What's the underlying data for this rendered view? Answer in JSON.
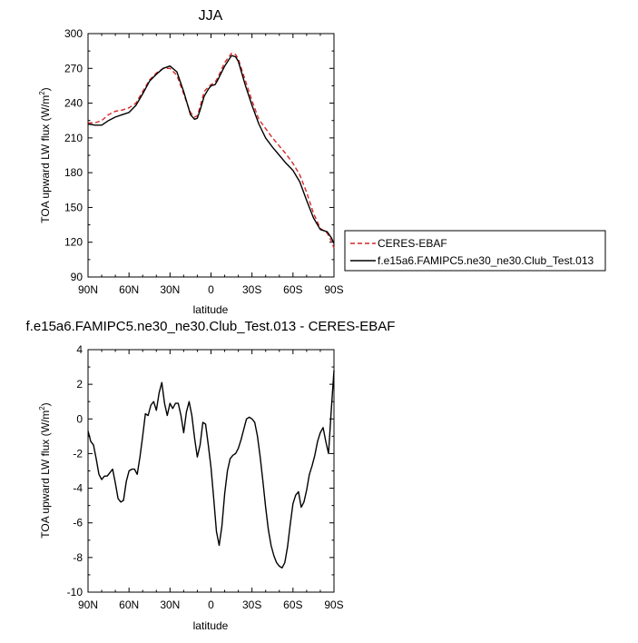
{
  "chart_data": [
    {
      "type": "line",
      "title": "JJA",
      "xlabel": "latitude",
      "ylabel": "TOA upward LW flux (W/m",
      "ylabel_sup": "2",
      "ylabel_end": ")",
      "xlim": [
        90,
        -90
      ],
      "ylim": [
        90,
        300
      ],
      "xticks": [
        90,
        60,
        30,
        0,
        -30,
        -60,
        -90
      ],
      "xtick_labels": [
        "90N",
        "60N",
        "30N",
        "0",
        "30S",
        "60S",
        "90S"
      ],
      "yticks": [
        90,
        120,
        150,
        180,
        210,
        240,
        270,
        300
      ],
      "ytick_labels": [
        "90",
        "120",
        "150",
        "180",
        "210",
        "240",
        "270",
        "300"
      ],
      "legend_position": "right",
      "series": [
        {
          "name": "CERES-EBAF",
          "color": "#d62728",
          "dash": "dashed",
          "x": [
            90,
            85,
            80,
            75,
            70,
            65,
            60,
            55,
            50,
            45,
            40,
            35,
            30,
            25,
            20,
            17,
            15,
            12,
            10,
            8,
            5,
            2,
            0,
            -3,
            -5,
            -10,
            -15,
            -18,
            -20,
            -25,
            -30,
            -35,
            -40,
            -45,
            -50,
            -55,
            -60,
            -65,
            -70,
            -75,
            -80,
            -85,
            -88,
            -90
          ],
          "y": [
            223,
            223,
            225,
            230,
            233,
            234,
            236,
            240,
            250,
            260,
            266,
            270,
            270,
            264,
            248,
            238,
            232,
            228,
            229,
            237,
            250,
            254,
            256,
            258,
            262,
            275,
            283,
            282,
            278,
            260,
            242,
            226,
            218,
            210,
            203,
            196,
            188,
            178,
            163,
            145,
            132,
            128,
            121,
            115
          ]
        },
        {
          "name": "f.e15a6.FAMIPC5.ne30_ne30.Club_Test.013",
          "color": "#000000",
          "dash": "solid",
          "x": [
            90,
            85,
            80,
            75,
            70,
            65,
            60,
            55,
            50,
            45,
            40,
            35,
            30,
            25,
            20,
            17,
            15,
            12,
            10,
            8,
            5,
            2,
            0,
            -3,
            -5,
            -10,
            -15,
            -18,
            -20,
            -25,
            -30,
            -35,
            -40,
            -45,
            -50,
            -55,
            -60,
            -65,
            -70,
            -75,
            -80,
            -85,
            -88,
            -90
          ],
          "y": [
            222,
            221,
            221,
            225,
            228,
            230,
            232,
            238,
            248,
            259,
            265,
            270,
            272,
            267,
            250,
            238,
            230,
            226,
            227,
            234,
            246,
            252,
            255,
            256,
            260,
            272,
            281,
            280,
            276,
            256,
            238,
            222,
            210,
            202,
            195,
            188,
            182,
            172,
            156,
            141,
            131,
            129,
            124,
            119
          ]
        }
      ]
    },
    {
      "type": "line",
      "title": "f.e15a6.FAMIPC5.ne30_ne30.Club_Test.013 - CERES-EBAF",
      "xlabel": "latitude",
      "ylabel": "TOA upward LW flux (W/m",
      "ylabel_sup": "2",
      "ylabel_end": ")",
      "xlim": [
        90,
        -90
      ],
      "ylim": [
        -10,
        4
      ],
      "xticks": [
        90,
        60,
        30,
        0,
        -30,
        -60,
        -90
      ],
      "xtick_labels": [
        "90N",
        "60N",
        "30N",
        "0",
        "30S",
        "60S",
        "90S"
      ],
      "yticks": [
        -10,
        -8,
        -6,
        -4,
        -2,
        0,
        2,
        4
      ],
      "ytick_labels": [
        "-10",
        "-8",
        "-6",
        "-4",
        "-2",
        "0",
        "2",
        "4"
      ],
      "series": [
        {
          "color": "#000000",
          "dash": "solid",
          "x": [
            90,
            88,
            86,
            84,
            82,
            80,
            78,
            76,
            74,
            72,
            70,
            68,
            66,
            64,
            62,
            60,
            58,
            56,
            54,
            52,
            50,
            48,
            46,
            44,
            42,
            40,
            38,
            36,
            34,
            32,
            30,
            28,
            26,
            24,
            22,
            20,
            18,
            16,
            14,
            12,
            10,
            8,
            6,
            4,
            2,
            0,
            -2,
            -4,
            -6,
            -8,
            -10,
            -12,
            -14,
            -16,
            -18,
            -20,
            -22,
            -24,
            -26,
            -28,
            -30,
            -32,
            -34,
            -36,
            -38,
            -40,
            -42,
            -44,
            -46,
            -48,
            -50,
            -52,
            -54,
            -56,
            -58,
            -60,
            -62,
            -64,
            -66,
            -68,
            -70,
            -72,
            -74,
            -76,
            -78,
            -80,
            -82,
            -84,
            -86,
            -88,
            -90
          ],
          "y": [
            -0.7,
            -1.3,
            -1.5,
            -2.3,
            -3.2,
            -3.5,
            -3.3,
            -3.3,
            -3.1,
            -2.9,
            -3.7,
            -4.6,
            -4.8,
            -4.7,
            -3.6,
            -3.0,
            -2.9,
            -2.9,
            -3.2,
            -2.2,
            -1.0,
            0.3,
            0.2,
            0.8,
            1.0,
            0.5,
            1.5,
            2.1,
            0.9,
            0.2,
            0.9,
            0.6,
            0.9,
            0.9,
            0.2,
            -0.8,
            0.4,
            1.0,
            0.2,
            -1.1,
            -2.2,
            -1.5,
            -0.2,
            -0.3,
            -1.5,
            -2.8,
            -4.6,
            -6.5,
            -7.3,
            -6.2,
            -4.3,
            -3.0,
            -2.3,
            -2.1,
            -2.0,
            -1.7,
            -1.2,
            -0.6,
            0.0,
            0.1,
            0.0,
            -0.2,
            -1.0,
            -2.2,
            -3.6,
            -5.1,
            -6.4,
            -7.3,
            -7.9,
            -8.3,
            -8.5,
            -8.6,
            -8.3,
            -7.4,
            -6.1,
            -4.9,
            -4.4,
            -4.2,
            -5.1,
            -4.8,
            -4.1,
            -3.2,
            -2.7,
            -2.1,
            -1.3,
            -0.8,
            -0.5,
            -1.3,
            -2.0,
            0.5,
            2.8
          ]
        }
      ]
    }
  ]
}
